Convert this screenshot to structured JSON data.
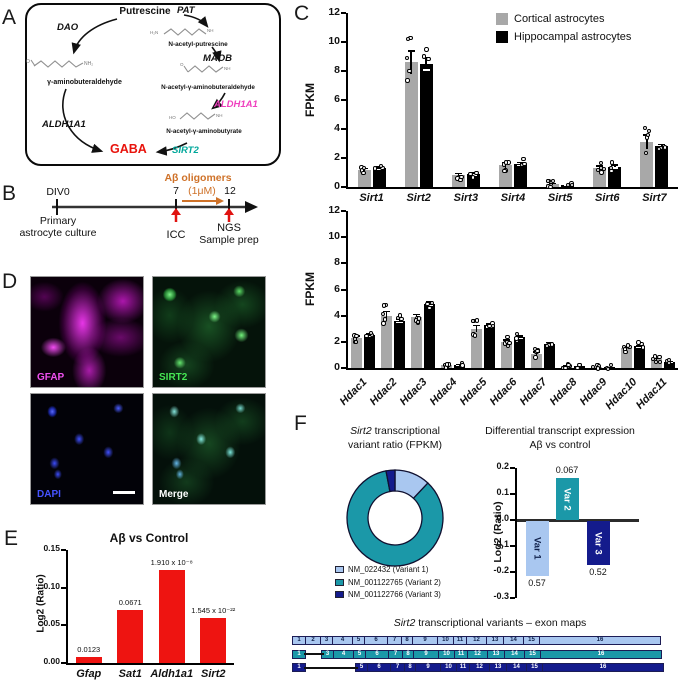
{
  "figure": {
    "background": "#ffffff"
  },
  "panels": {
    "A": {
      "label": "A",
      "pathway": {
        "putrescine": "Putrescine",
        "pat": "PAT",
        "dao": "DAO",
        "maob": "MAOB",
        "aldh1a1_left": "ALDH1A1",
        "aldh1a1_right": "ALDH1A1",
        "sirt2": "SIRT2",
        "gaba": "GABA",
        "gamma_aminobuteraldehyde": "γ-aminobuteraldehyde",
        "n_acetyl_putrescine": "N-acetyl-putrescine",
        "n_acetyl_gamma_aminobuteraldehyde": "N-acetyl-γ-aminobuteraldehyde",
        "n_acetyl_gamma_aminobutyrate": "N-acetyl-γ-aminobutyrate",
        "nh2": "NH₂",
        "h2n": "H₂N",
        "nh": "NH",
        "o": "O",
        "ho": "HO"
      },
      "colors": {
        "aldh1a1_pink": "#ef3fbe",
        "sirt2_teal": "#00a79b",
        "gaba_red": "#e8130c"
      }
    },
    "B": {
      "label": "B",
      "div0": "DIV0",
      "primary_line1": "Primary",
      "primary_line2": "astrocyte culture",
      "day7": "7",
      "dose": "(1μM)",
      "day12": "12",
      "ab_oligomers": "Aβ oligomers",
      "icc": "ICC",
      "ngs": "NGS",
      "sample_prep": "Sample prep",
      "colors": {
        "orange": "#cf7229",
        "red": "#e01310"
      }
    },
    "C": {
      "label": "C"
    },
    "D": {
      "label": "D",
      "images": [
        {
          "label": "GFAP",
          "color": "#f050f0"
        },
        {
          "label": "SIRT2",
          "color": "#45e553"
        },
        {
          "label": "DAPI",
          "color": "#4553ff"
        },
        {
          "label": "Merge",
          "color": "#ffffff"
        }
      ]
    },
    "E": {
      "label": "E"
    },
    "F": {
      "label": "F",
      "donut_title_italic": "Sirt2",
      "donut_title_rest": " transcriptional",
      "donut_title_line2": "variant ratio (FPKM)",
      "diff_title_line1": "Differential transcript expression",
      "diff_title_line2": "Aβ vs control",
      "exon_title_italic": "Sirt2",
      "exon_title_rest": " transcriptional variants – exon maps",
      "exon_maps": {
        "widths": [
          14,
          16,
          13,
          21,
          13,
          24,
          15,
          12,
          26,
          17,
          14,
          21,
          18,
          21,
          17,
          122
        ],
        "variants": [
          {
            "name": "Variant 1",
            "color": "#a9c7f0",
            "text_color": "#10204a",
            "missing": []
          },
          {
            "name": "Variant 2",
            "color": "#1b98a8",
            "text_color": "#ffffff",
            "missing": [
              2
            ]
          },
          {
            "name": "Variant 3",
            "color": "#141b8c",
            "text_color": "#ffffff",
            "missing": [
              2,
              3,
              4
            ]
          }
        ]
      }
    }
  },
  "chart_data": [
    {
      "id": "sirt_fpkm",
      "type": "bar",
      "ylabel": "FPKM",
      "ylim": [
        0,
        12
      ],
      "ystep": 2,
      "categories": [
        "Sirt1",
        "Sirt2",
        "Sirt3",
        "Sirt4",
        "Sirt5",
        "Sirt6",
        "Sirt7"
      ],
      "series": [
        {
          "name": "Cortical astrocytes",
          "color": "#a8a8a8",
          "values": [
            1.2,
            8.6,
            0.8,
            1.5,
            0.2,
            1.3,
            3.1
          ],
          "err": [
            0.1,
            0.8,
            0.15,
            0.2,
            0.05,
            0.15,
            0.5
          ]
        },
        {
          "name": "Hippocampal astrocytes",
          "color": "#000000",
          "values": [
            1.3,
            8.5,
            0.9,
            1.6,
            0.15,
            1.4,
            2.8
          ],
          "err": [
            0.1,
            0.45,
            0.1,
            0.12,
            0.04,
            0.12,
            0.15
          ]
        }
      ],
      "legend_position": "top-right",
      "grid": false
    },
    {
      "id": "hdac_fpkm",
      "type": "bar",
      "ylabel": "FPKM",
      "ylim": [
        0,
        12
      ],
      "ystep": 2,
      "categories": [
        "Hdac1",
        "Hdac2",
        "Hdac3",
        "Hdac4",
        "Hdac5",
        "Hdac6",
        "Hdac7",
        "Hdac8",
        "Hdac9",
        "Hdac10",
        "Hdac11"
      ],
      "series": [
        {
          "name": "Cortical astrocytes",
          "color": "#a8a8a8",
          "values": [
            2.3,
            4.0,
            3.9,
            0.2,
            3.0,
            2.0,
            1.1,
            0.15,
            0.08,
            1.5,
            0.65
          ],
          "err": [
            0.15,
            0.35,
            0.2,
            0.04,
            0.25,
            0.15,
            0.15,
            0.03,
            0.02,
            0.15,
            0.08
          ]
        },
        {
          "name": "Hippocampal astrocytes",
          "color": "#000000",
          "values": [
            2.5,
            3.6,
            4.9,
            0.2,
            3.25,
            2.35,
            1.85,
            0.12,
            0.06,
            1.65,
            0.45
          ],
          "err": [
            0.1,
            0.15,
            0.15,
            0.03,
            0.12,
            0.1,
            0.1,
            0.02,
            0.02,
            0.1,
            0.05
          ]
        }
      ],
      "grid": false
    },
    {
      "id": "ab_vs_control",
      "type": "bar",
      "title": "Aβ vs Control",
      "ylabel": "Log2 (Ratio)",
      "ylim": [
        0,
        0.15
      ],
      "ystep": 0.05,
      "color": "#ee1411",
      "categories": [
        "Gfap",
        "Sat1",
        "Aldh1a1",
        "Sirt2"
      ],
      "values": [
        0.008,
        0.071,
        0.123,
        0.06
      ],
      "bar_labels": [
        "0.0123",
        "0.0671",
        "1.910 x 10⁻⁸",
        "1.545 x 10⁻²²"
      ],
      "grid": false
    },
    {
      "id": "sirt2_variant_ratio",
      "type": "pie",
      "donut": true,
      "labels": [
        "NM_022432 (Variant 1)",
        "NM_001122765 (Variant 2)",
        "NM_001122766 (Variant 3)"
      ],
      "values": [
        12,
        85,
        3
      ],
      "colors": [
        "#a9c7f0",
        "#1b98a8",
        "#141b8c"
      ]
    },
    {
      "id": "diff_transcript",
      "type": "bar",
      "ylabel": "Log2 (Ratio)",
      "ylim": [
        -0.3,
        0.2
      ],
      "ystep": 0.1,
      "categories": [
        "Var 1",
        "Var 2",
        "Var 3"
      ],
      "values": [
        -0.21,
        0.16,
        -0.17
      ],
      "value_labels": [
        "0.57",
        "0.067",
        "0.52"
      ],
      "colors": [
        "#a9c7f0",
        "#1b98a8",
        "#141b8c"
      ],
      "label_colors": [
        "#10204a",
        "#ffffff",
        "#ffffff"
      ],
      "grid": false
    }
  ]
}
